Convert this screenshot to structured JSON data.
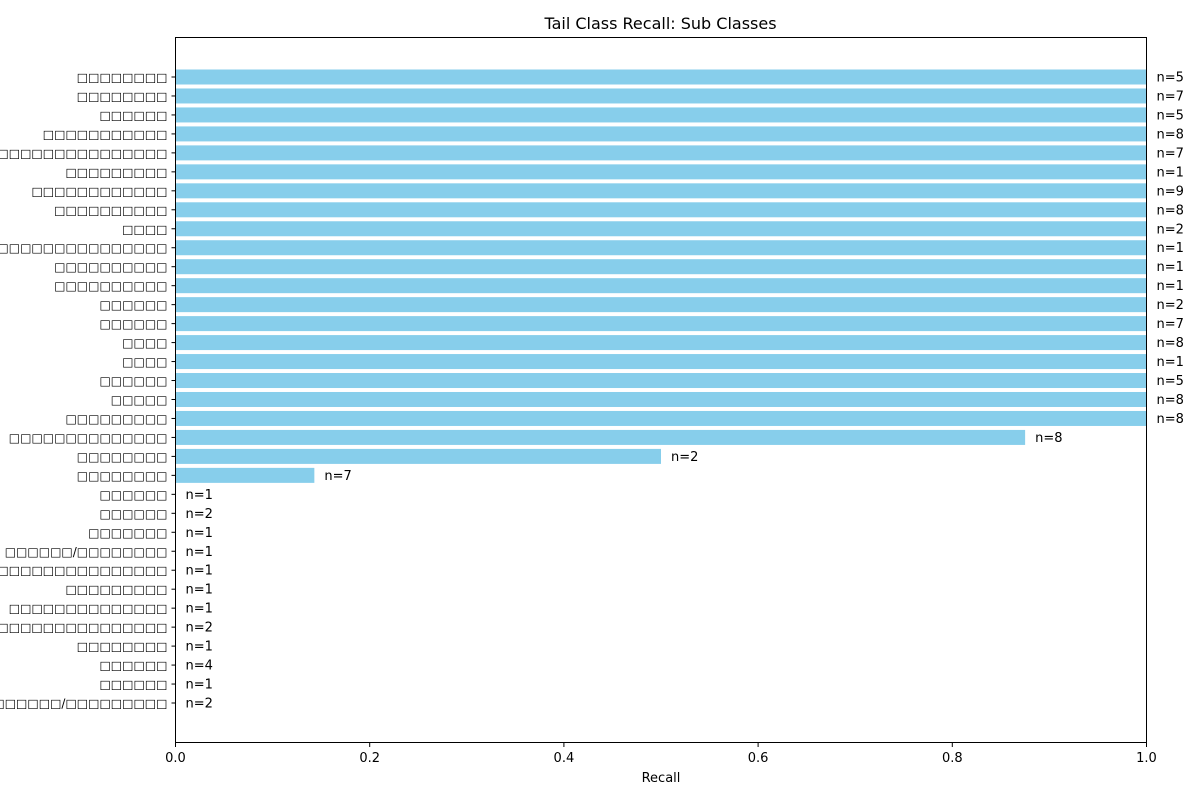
{
  "chart_data": {
    "type": "bar",
    "orientation": "horizontal",
    "title": "Tail Class Recall: Sub Classes",
    "xlabel": "Recall",
    "ylabel": "",
    "xlim": [
      0,
      1.0
    ],
    "xticks": [
      "0.0",
      "0.2",
      "0.4",
      "0.6",
      "0.8",
      "1.0"
    ],
    "grid": false,
    "bar_color": "#87CEEB",
    "categories": [
      "□□□□□□□□",
      "□□□□□□□□",
      "□□□□□□",
      "□□□□□□□□□□□",
      "□□□□□□□□□□□□□□□□□□",
      "□□□□□□□□□",
      "□□□□□□□□□□□□",
      "□□□□□□□□□□",
      "□□□□",
      "□□□□□□□□□□□□□□□",
      "□□□□□□□□□□",
      "□□□□□□□□□□",
      "□□□□□□",
      "□□□□□□",
      "□□□□",
      "□□□□",
      "□□□□□□",
      "□□□□□",
      "□□□□□□□□□",
      "□□□□□□□□□□□□□□",
      "□□□□□□□□",
      "□□□□□□□□",
      "□□□□□□",
      "□□□□□□",
      "□□□□□□□",
      "□□□□□□/□□□□□□□□",
      "□□□□□□□□□□□□□□□□□",
      "□□□□□□□□□",
      "□□□□□□□□□□□□□□",
      "□□□□□□□□□□□□□□□",
      "□□□□□□□□",
      "□□□□□□",
      "□□□□□□",
      "□□□□□□/□□□□□□□□□"
    ],
    "values": [
      1.0,
      1.0,
      1.0,
      1.0,
      1.0,
      1.0,
      1.0,
      1.0,
      1.0,
      1.0,
      1.0,
      1.0,
      1.0,
      1.0,
      1.0,
      1.0,
      1.0,
      1.0,
      1.0,
      0.875,
      0.5,
      0.143,
      0,
      0,
      0,
      0,
      0,
      0,
      0,
      0,
      0,
      0,
      0,
      0
    ],
    "annotations": [
      "n=5",
      "n=7",
      "n=5",
      "n=8",
      "n=7",
      "n=1",
      "n=9",
      "n=8",
      "n=2",
      "n=1",
      "n=1",
      "n=1",
      "n=2",
      "n=7",
      "n=8",
      "n=1",
      "n=5",
      "n=8",
      "n=8",
      "n=8",
      "n=2",
      "n=7",
      "n=1",
      "n=2",
      "n=1",
      "n=1",
      "n=1",
      "n=1",
      "n=1",
      "n=2",
      "n=1",
      "n=4",
      "n=1",
      "n=2"
    ]
  }
}
